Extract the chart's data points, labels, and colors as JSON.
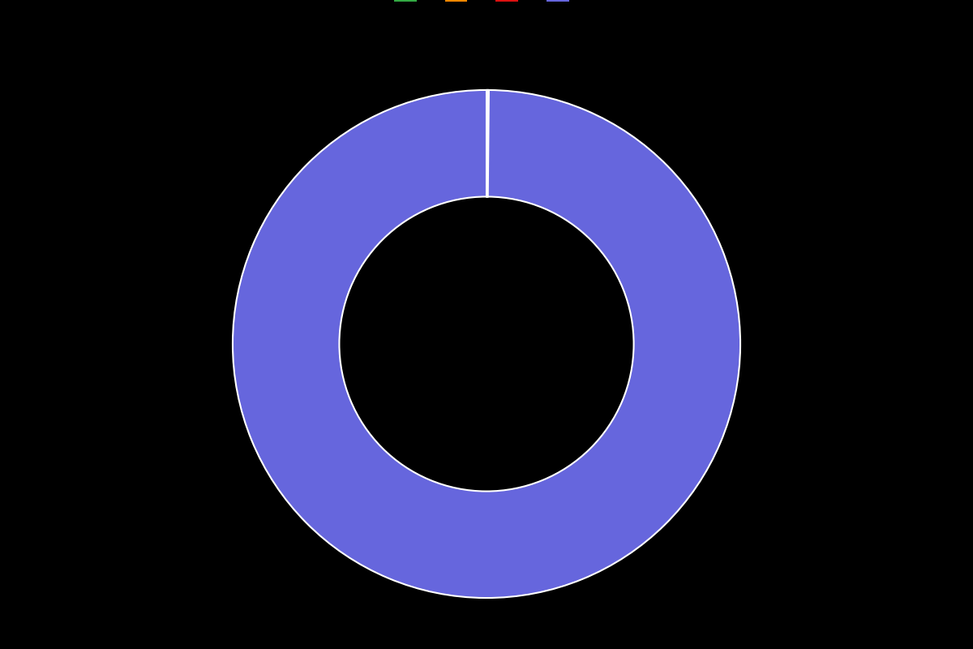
{
  "slices": [
    0.05,
    0.05,
    0.05,
    99.85
  ],
  "colors": [
    "#33aa44",
    "#ff8800",
    "#dd1111",
    "#6666dd"
  ],
  "labels": [
    "",
    "",
    "",
    ""
  ],
  "legend_colors": [
    "#33aa44",
    "#ff8800",
    "#dd1111",
    "#6666dd"
  ],
  "legend_labels": [
    "",
    "",
    "",
    ""
  ],
  "background_color": "#000000",
  "wedge_edge_color": "#ffffff",
  "wedge_linewidth": 1.5,
  "donut_width": 0.42,
  "startangle": 90,
  "figsize": [
    12,
    8
  ]
}
